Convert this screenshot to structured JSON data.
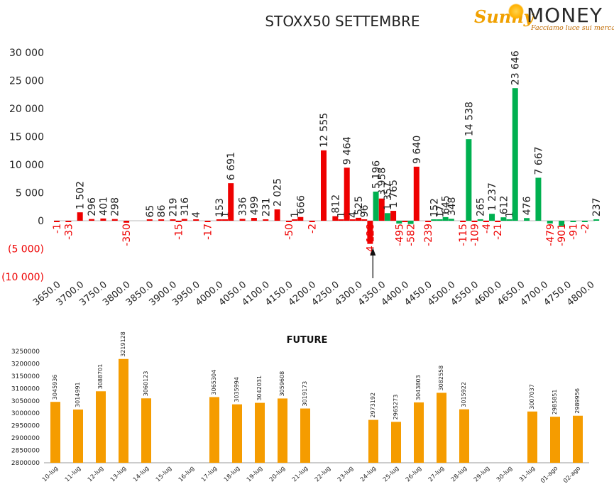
{
  "header": {
    "title": "STOXX50 SETTEMBRE",
    "logo": {
      "brand_sunny": "Sunny",
      "brand_money": "MONEY",
      "tagline": "Facciamo luce sui mercati"
    }
  },
  "colors": {
    "positive_green": "#00b050",
    "negative_red": "#ee0000",
    "future_orange": "#f59c00",
    "axis": "#999999"
  },
  "chart_data": [
    {
      "type": "bar",
      "title": "STOXX50 SETTEMBRE",
      "ylim": [
        -10000,
        30000
      ],
      "y_ticks": [
        30000,
        25000,
        20000,
        15000,
        10000,
        5000,
        0,
        -5000,
        -10000
      ],
      "y_tick_labels": [
        "30 000",
        "25 000",
        "20 000",
        "15 000",
        "10 000",
        "5 000",
        "0",
        "(5 000)",
        "(10 000)"
      ],
      "x_tick_labels": [
        "3650.0",
        "3700.0",
        "3750.0",
        "3800.0",
        "3850.0",
        "3900.0",
        "3950.0",
        "4000.0",
        "4050.0",
        "4100.0",
        "4150.0",
        "4200.0",
        "4250.0",
        "4300.0",
        "4350.0",
        "4400.0",
        "4450.0",
        "4500.0",
        "4550.0",
        "4600.0",
        "4650.0",
        "4700.0",
        "4750.0",
        "4800.0"
      ],
      "annotation": "arrow marking current price near 4325",
      "series": [
        {
          "color_role": "red",
          "points": [
            {
              "x": 3650,
              "v": -1,
              "label": "-1"
            },
            {
              "x": 3675,
              "v": -33,
              "label": "-33"
            },
            {
              "x": 3700,
              "v": 1502,
              "label": "1 502"
            },
            {
              "x": 3725,
              "v": 296,
              "label": "296"
            },
            {
              "x": 3750,
              "v": 401,
              "label": "401"
            },
            {
              "x": 3775,
              "v": 298,
              "label": "298"
            },
            {
              "x": 3800,
              "v": -350,
              "label": "-350"
            },
            {
              "x": 3850,
              "v": 65,
              "label": "65"
            },
            {
              "x": 3875,
              "v": 86,
              "label": "86"
            },
            {
              "x": 3900,
              "v": 219,
              "label": "219"
            },
            {
              "x": 3912.5,
              "v": -15,
              "label": "-15"
            },
            {
              "x": 3925,
              "v": 316,
              "label": "316"
            },
            {
              "x": 3950,
              "v": 4,
              "label": "4"
            },
            {
              "x": 3975,
              "v": -17,
              "label": "-17"
            },
            {
              "x": 4000,
              "v": 153,
              "label": "153"
            },
            {
              "x": 4012.5,
              "v": 1,
              "label": "1"
            },
            {
              "x": 4025,
              "v": 6691,
              "label": "6 691"
            },
            {
              "x": 4050,
              "v": 336,
              "label": "336"
            },
            {
              "x": 4075,
              "v": 499,
              "label": "499"
            },
            {
              "x": 4100,
              "v": 231,
              "label": "231"
            },
            {
              "x": 4125,
              "v": 2025,
              "label": "2 025"
            },
            {
              "x": 4150,
              "v": -50,
              "label": "-50"
            },
            {
              "x": 4162.5,
              "v": 1,
              "label": "1"
            },
            {
              "x": 4175,
              "v": 666,
              "label": "666"
            },
            {
              "x": 4200,
              "v": -2,
              "label": "-2"
            },
            {
              "x": 4225,
              "v": 12555,
              "label": "12 555"
            },
            {
              "x": 4250,
              "v": 812,
              "label": "812"
            },
            {
              "x": 4262.5,
              "v": 1,
              "label": "1"
            },
            {
              "x": 4275,
              "v": 9464,
              "label": "9 464"
            },
            {
              "x": 4287.5,
              "v": 4,
              "label": "4"
            },
            {
              "x": 4300,
              "v": 525,
              "label": "525"
            },
            {
              "x": 4312.5,
              "v": 96,
              "label": "96"
            },
            {
              "x": 4325,
              "v": -4128,
              "label": "-4 128"
            },
            {
              "x": 4350,
              "v": 3958,
              "label": "3 958"
            },
            {
              "x": 4375,
              "v": 1765,
              "label": "1 765"
            },
            {
              "x": 4400,
              "v": -95,
              "label": ""
            },
            {
              "x": 4425,
              "v": 9640,
              "label": "9 640"
            },
            {
              "x": 4450,
              "v": -239,
              "label": "-239"
            },
            {
              "x": 4525,
              "v": -115,
              "label": "-115"
            },
            {
              "x": 4550,
              "v": -109,
              "label": "-109"
            },
            {
              "x": 4575,
              "v": -4,
              "label": "-4"
            },
            {
              "x": 4600,
              "v": -21,
              "label": "-21"
            }
          ]
        },
        {
          "color_role": "green",
          "points": [
            {
              "x": 4337.5,
              "v": 5196,
              "label": "5 196"
            },
            {
              "x": 4362.5,
              "v": 1357,
              "label": "1 357"
            },
            {
              "x": 4387.5,
              "v": -495,
              "label": "-495"
            },
            {
              "x": 4412.5,
              "v": -582,
              "label": "-582"
            },
            {
              "x": 4462.5,
              "v": 152,
              "label": "152"
            },
            {
              "x": 4475,
              "v": 17,
              "label": "17"
            },
            {
              "x": 4487.5,
              "v": 645,
              "label": "645"
            },
            {
              "x": 4500,
              "v": 348,
              "label": "348"
            },
            {
              "x": 4537.5,
              "v": 14538,
              "label": "14 538"
            },
            {
              "x": 4562.5,
              "v": 265,
              "label": "265"
            },
            {
              "x": 4587.5,
              "v": 1237,
              "label": "1 237"
            },
            {
              "x": 4612.5,
              "v": 612,
              "label": "612"
            },
            {
              "x": 4625,
              "v": 1,
              "label": "1"
            },
            {
              "x": 4637.5,
              "v": 23646,
              "label": "23 646"
            },
            {
              "x": 4662.5,
              "v": 476,
              "label": "476"
            },
            {
              "x": 4687.5,
              "v": 7667,
              "label": "7 667"
            },
            {
              "x": 4712.5,
              "v": -479,
              "label": "-479"
            },
            {
              "x": 4737.5,
              "v": -901,
              "label": "-901"
            },
            {
              "x": 4762.5,
              "v": -91,
              "label": "-91"
            },
            {
              "x": 4787.5,
              "v": -2,
              "label": "-2"
            },
            {
              "x": 4812.5,
              "v": 237,
              "label": "237"
            }
          ]
        }
      ]
    },
    {
      "type": "bar",
      "title": "FUTURE",
      "ylim": [
        2800000,
        3250000
      ],
      "y_ticks": [
        3250000,
        3200000,
        3150000,
        3100000,
        3050000,
        3000000,
        2950000,
        2900000,
        2850000,
        2800000
      ],
      "categories": [
        "10-lug",
        "11-lug",
        "12-lug",
        "13-lug",
        "14-lug",
        "15-lug",
        "16-lug",
        "17-lug",
        "18-lug",
        "19-lug",
        "20-lug",
        "21-lug",
        "22-lug",
        "23-lug",
        "24-lug",
        "25-lug",
        "26-lug",
        "27-lug",
        "28-lug",
        "29-lug",
        "30-lug",
        "31-lug",
        "01-ago",
        "02-ago"
      ],
      "values": [
        3045936,
        3014991,
        3088701,
        3219128,
        3060123,
        null,
        null,
        3065304,
        3035994,
        3042031,
        3059608,
        3019173,
        null,
        null,
        2973192,
        2965273,
        3043803,
        3082558,
        3015922,
        null,
        null,
        3007037,
        2985851,
        2989956
      ]
    }
  ]
}
